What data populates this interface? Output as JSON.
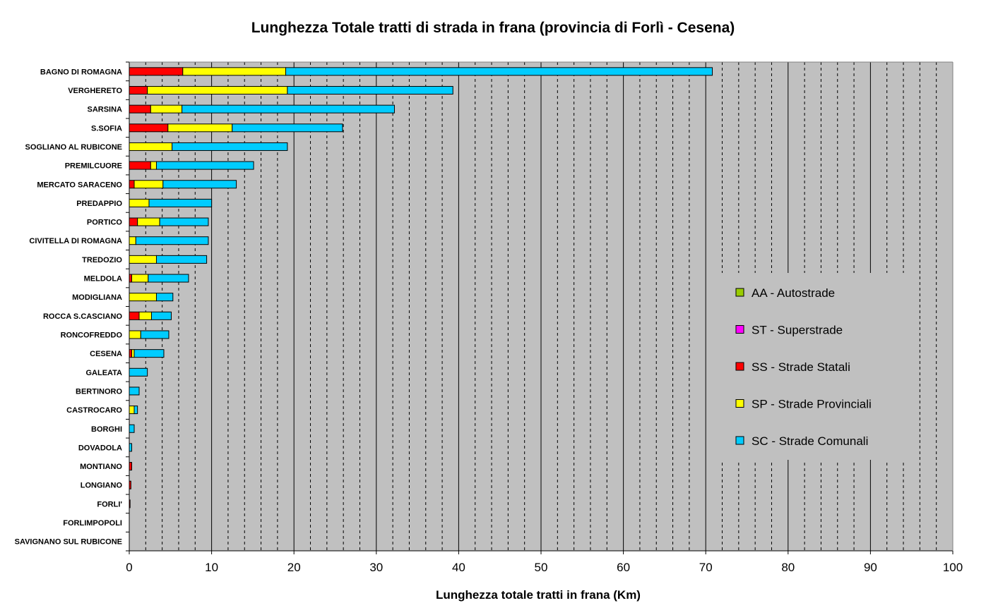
{
  "chart_data": {
    "type": "bar",
    "orientation": "horizontal",
    "stacked": true,
    "title": "Lunghezza Totale tratti di strada in frana (provincia di Forlì - Cesena)",
    "xlabel": "Lunghezza totale tratti in frana (Km)",
    "ylabel": "",
    "xlim": [
      0,
      100
    ],
    "xticks": [
      "0",
      "10",
      "20",
      "30",
      "40",
      "50",
      "60",
      "70",
      "80",
      "90",
      "100"
    ],
    "grid": "vertical major solid, minor dashed",
    "legend_position": "right",
    "background_color": "#c0c0c0",
    "categories": [
      "BAGNO DI ROMAGNA",
      "VERGHERETO",
      "SARSINA",
      "S.SOFIA",
      "SOGLIANO AL RUBICONE",
      "PREMILCUORE",
      "MERCATO SARACENO",
      "PREDAPPIO",
      "PORTICO",
      "CIVITELLA DI ROMAGNA",
      "TREDOZIO",
      "MELDOLA",
      "MODIGLIANA",
      "ROCCA S.CASCIANO",
      "RONCOFREDDO",
      "CESENA",
      "GALEATA",
      "BERTINORO",
      "CASTROCARO",
      "BORGHI",
      "DOVADOLA",
      "MONTIANO",
      "LONGIANO",
      "FORLI'",
      "FORLIMPOPOLI",
      "SAVIGNANO SUL RUBICONE"
    ],
    "series": [
      {
        "name": "AA - Autostrade",
        "color": "#99cc00",
        "values": [
          0,
          0,
          0,
          0,
          0,
          0,
          0,
          0,
          0,
          0,
          0,
          0,
          0,
          0,
          0,
          0,
          0,
          0,
          0,
          0,
          0,
          0,
          0,
          0,
          0,
          0
        ]
      },
      {
        "name": "ST - Superstrade",
        "color": "#ff00ff",
        "values": [
          0,
          0,
          0,
          0,
          0,
          0,
          0,
          0,
          0,
          0,
          0,
          0,
          0,
          0,
          0,
          0,
          0,
          0,
          0,
          0,
          0,
          0,
          0,
          0,
          0,
          0
        ]
      },
      {
        "name": "SS - Strade Statali",
        "color": "#ff0000",
        "values": [
          6.5,
          2.2,
          2.6,
          4.7,
          0,
          2.6,
          0.6,
          0,
          1.0,
          0,
          0,
          0.3,
          0,
          1.2,
          0,
          0.3,
          0,
          0,
          0,
          0,
          0,
          0.3,
          0.2,
          0.1,
          0,
          0
        ]
      },
      {
        "name": "SP - Strade Provinciali",
        "color": "#ffff00",
        "values": [
          12.5,
          17.0,
          3.8,
          7.8,
          5.2,
          0.7,
          3.5,
          2.4,
          2.7,
          0.8,
          3.3,
          2.0,
          3.3,
          1.5,
          1.4,
          0.3,
          0,
          0,
          0.6,
          0,
          0,
          0,
          0,
          0,
          0,
          0
        ]
      },
      {
        "name": "SC - Strade Comunali",
        "color": "#00ccff",
        "values": [
          51.8,
          20.1,
          25.8,
          13.4,
          14.0,
          11.8,
          8.9,
          7.6,
          5.9,
          8.8,
          6.1,
          4.9,
          2.0,
          2.4,
          3.4,
          3.6,
          2.2,
          1.2,
          0.4,
          0.6,
          0.3,
          0,
          0,
          0,
          0,
          0
        ]
      }
    ]
  }
}
